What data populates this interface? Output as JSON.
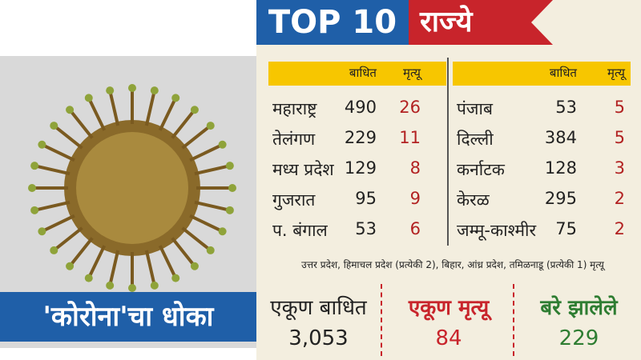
{
  "header": {
    "title": "TOP 10",
    "subtitle": "राज्ये"
  },
  "caption": "'कोरोना'चा धोका",
  "left_table": {
    "columns": [
      "बाधित",
      "मृत्यू"
    ],
    "rows": [
      [
        "महाराष्ट्र",
        "490",
        "26"
      ],
      [
        "तेलंगण",
        "229",
        "11"
      ],
      [
        "मध्य प्रदेश",
        "129",
        "8"
      ],
      [
        "गुजरात",
        "95",
        "9"
      ],
      [
        "प. बंगाल",
        "53",
        "6"
      ]
    ]
  },
  "right_table": {
    "columns": [
      "बाधित",
      "मृत्यू"
    ],
    "rows": [
      [
        "पंजाब",
        "53",
        "5"
      ],
      [
        "दिल्ली",
        "384",
        "5"
      ],
      [
        "कर्नाटक",
        "128",
        "3"
      ],
      [
        "केरळ",
        "295",
        "2"
      ],
      [
        "जम्मू-काश्मीर",
        "75",
        "2"
      ]
    ]
  },
  "note": "उत्तर प्रदेश, हिमाचल प्रदेश (प्रत्येकी 2), बिहार, आंध्र प्रदेश, तमिळनाडू (प्रत्येकी 1) मृत्यू",
  "totals": [
    {
      "label": "एकूण बाधित",
      "value": "3,053"
    },
    {
      "label": "एकूण मृत्यू",
      "value": "84"
    },
    {
      "label": "बरे झालेले",
      "value": "229"
    }
  ]
}
